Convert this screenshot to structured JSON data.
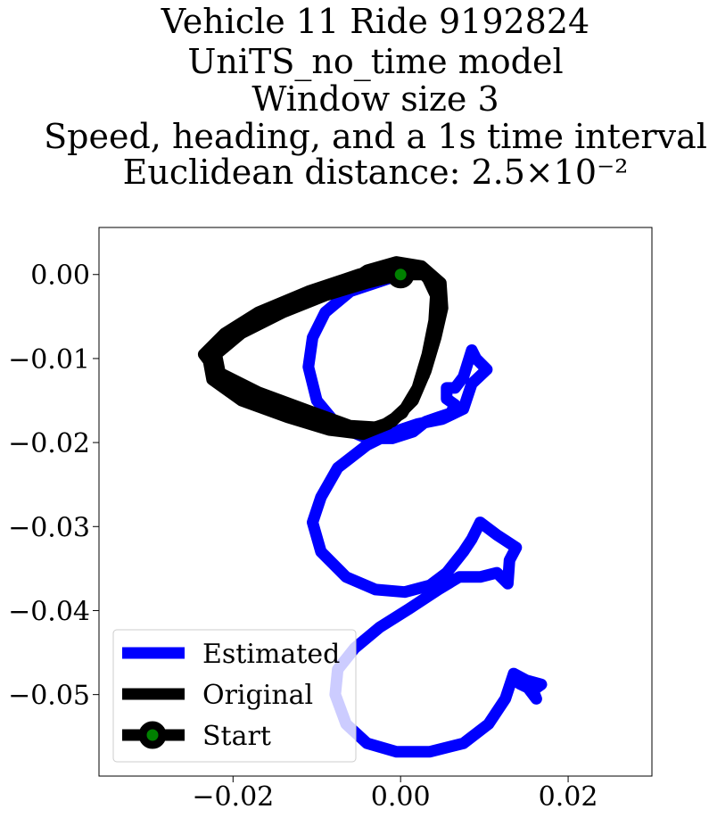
{
  "chart_data": {
    "type": "line",
    "title_lines": [
      "Vehicle 11 Ride 9192824",
      "UniTS_no_time model",
      "Window size 3",
      "Speed, heading, and a 1s time interval",
      "Euclidean distance: 2.5×10⁻²"
    ],
    "xlabel": "",
    "ylabel": "",
    "xlim": [
      -0.036,
      0.03
    ],
    "ylim": [
      -0.0597,
      0.0056
    ],
    "xticks": [
      {
        "value": -0.02,
        "label": "−0.02"
      },
      {
        "value": 0.0,
        "label": "0.00"
      },
      {
        "value": 0.02,
        "label": "0.02"
      }
    ],
    "yticks": [
      {
        "value": 0.0,
        "label": "0.00"
      },
      {
        "value": -0.01,
        "label": "−0.01"
      },
      {
        "value": -0.02,
        "label": "−0.02"
      },
      {
        "value": -0.03,
        "label": "−0.03"
      },
      {
        "value": -0.04,
        "label": "−0.04"
      },
      {
        "value": -0.05,
        "label": "−0.05"
      }
    ],
    "grid": false,
    "legend_position": "lower-left",
    "series": [
      {
        "name": "Estimated",
        "color": "#0000ff",
        "points": [
          [
            0.0,
            0.0
          ],
          [
            -0.003,
            -0.001
          ],
          [
            -0.006,
            -0.002
          ],
          [
            -0.009,
            -0.0045
          ],
          [
            -0.0105,
            -0.0075
          ],
          [
            -0.011,
            -0.011
          ],
          [
            -0.01,
            -0.015
          ],
          [
            -0.0075,
            -0.018
          ],
          [
            -0.004,
            -0.0195
          ],
          [
            -0.001,
            -0.0195
          ],
          [
            0.0015,
            -0.0187
          ],
          [
            0.003,
            -0.0175
          ],
          [
            0.0045,
            -0.017
          ],
          [
            0.006,
            -0.0165
          ],
          [
            0.0065,
            -0.0155
          ],
          [
            0.0055,
            -0.0148
          ],
          [
            0.0055,
            -0.0135
          ],
          [
            0.0065,
            -0.0135
          ],
          [
            0.0075,
            -0.0122
          ],
          [
            0.0085,
            -0.009
          ],
          [
            0.009,
            -0.01
          ],
          [
            0.0103,
            -0.0113
          ],
          [
            0.0085,
            -0.013
          ],
          [
            0.0075,
            -0.016
          ],
          [
            0.005,
            -0.0172
          ],
          [
            0.002,
            -0.0178
          ],
          [
            -0.001,
            -0.0188
          ],
          [
            -0.004,
            -0.0203
          ],
          [
            -0.0075,
            -0.023
          ],
          [
            -0.0095,
            -0.0265
          ],
          [
            -0.0105,
            -0.0295
          ],
          [
            -0.0095,
            -0.033
          ],
          [
            -0.0065,
            -0.036
          ],
          [
            -0.003,
            -0.0375
          ],
          [
            0.0005,
            -0.0378
          ],
          [
            0.0035,
            -0.037
          ],
          [
            0.0055,
            -0.0355
          ],
          [
            0.0075,
            -0.033
          ],
          [
            0.0085,
            -0.0315
          ],
          [
            0.0095,
            -0.0295
          ],
          [
            0.0115,
            -0.031
          ],
          [
            0.0138,
            -0.0325
          ],
          [
            0.013,
            -0.034
          ],
          [
            0.0128,
            -0.0368
          ],
          [
            0.0115,
            -0.0355
          ],
          [
            0.0095,
            -0.036
          ],
          [
            0.007,
            -0.036
          ],
          [
            0.0045,
            -0.0375
          ],
          [
            0.001,
            -0.0398
          ],
          [
            -0.0025,
            -0.042
          ],
          [
            -0.0055,
            -0.0445
          ],
          [
            -0.0075,
            -0.047
          ],
          [
            -0.0078,
            -0.05
          ],
          [
            -0.0065,
            -0.0535
          ],
          [
            -0.004,
            -0.0558
          ],
          [
            -0.0005,
            -0.0568
          ],
          [
            0.0035,
            -0.0568
          ],
          [
            0.0075,
            -0.0558
          ],
          [
            0.0105,
            -0.0535
          ],
          [
            0.0125,
            -0.0505
          ],
          [
            0.0135,
            -0.0475
          ],
          [
            0.015,
            -0.0483
          ],
          [
            0.0168,
            -0.0488
          ],
          [
            0.0158,
            -0.0495
          ],
          [
            0.0162,
            -0.0505
          ],
          [
            0.0152,
            -0.0492
          ],
          [
            0.0142,
            -0.0487
          ],
          [
            0.0136,
            -0.0478
          ]
        ]
      },
      {
        "name": "Original",
        "color": "#000000",
        "points": [
          [
            0.0,
            0.0
          ],
          [
            -0.004,
            -0.001
          ],
          [
            -0.009,
            -0.0025
          ],
          [
            -0.014,
            -0.0045
          ],
          [
            -0.019,
            -0.007
          ],
          [
            -0.022,
            -0.0095
          ],
          [
            -0.0215,
            -0.012
          ],
          [
            -0.018,
            -0.0145
          ],
          [
            -0.013,
            -0.0165
          ],
          [
            -0.008,
            -0.018
          ],
          [
            -0.004,
            -0.0185
          ],
          [
            -0.001,
            -0.0175
          ],
          [
            0.0015,
            -0.015
          ],
          [
            0.003,
            -0.0115
          ],
          [
            0.0042,
            -0.0075
          ],
          [
            0.005,
            -0.004
          ],
          [
            0.0048,
            -0.001
          ],
          [
            0.0025,
            0.001
          ],
          [
            -0.0005,
            0.0015
          ],
          [
            -0.004,
            0.0005
          ],
          [
            -0.007,
            -0.0015
          ],
          [
            -0.011,
            -0.003
          ],
          [
            -0.016,
            -0.005
          ],
          [
            -0.0205,
            -0.0075
          ],
          [
            -0.023,
            -0.0098
          ],
          [
            -0.0225,
            -0.0125
          ],
          [
            -0.019,
            -0.015
          ],
          [
            -0.0135,
            -0.017
          ],
          [
            -0.0085,
            -0.0185
          ],
          [
            -0.0045,
            -0.019
          ],
          [
            -0.0015,
            -0.0178
          ],
          [
            0.001,
            -0.0155
          ],
          [
            0.0028,
            -0.012
          ],
          [
            0.0038,
            -0.008
          ],
          [
            0.0045,
            -0.0045
          ],
          [
            0.0042,
            -0.0015
          ],
          [
            0.002,
            0.0008
          ],
          [
            -0.0005,
            0.0012
          ],
          [
            -0.005,
            0.0
          ],
          [
            -0.011,
            -0.002
          ],
          [
            -0.017,
            -0.0045
          ],
          [
            -0.021,
            -0.007
          ],
          [
            -0.0235,
            -0.0095
          ],
          [
            -0.022,
            -0.0115
          ],
          [
            -0.017,
            -0.014
          ],
          [
            -0.011,
            -0.0162
          ],
          [
            -0.006,
            -0.018
          ],
          [
            -0.0025,
            -0.0182
          ],
          [
            0.0002,
            -0.0165
          ],
          [
            0.002,
            -0.0135
          ],
          [
            0.0032,
            -0.0095
          ],
          [
            0.004,
            -0.0055
          ],
          [
            0.0042,
            -0.0025
          ],
          [
            0.003,
            0.0
          ],
          [
            0.0,
            0.0
          ]
        ]
      }
    ],
    "start_marker": {
      "name": "Start",
      "x": 0.0,
      "y": 0.0,
      "face_color": "#008000",
      "edge_color": "#000000"
    }
  }
}
